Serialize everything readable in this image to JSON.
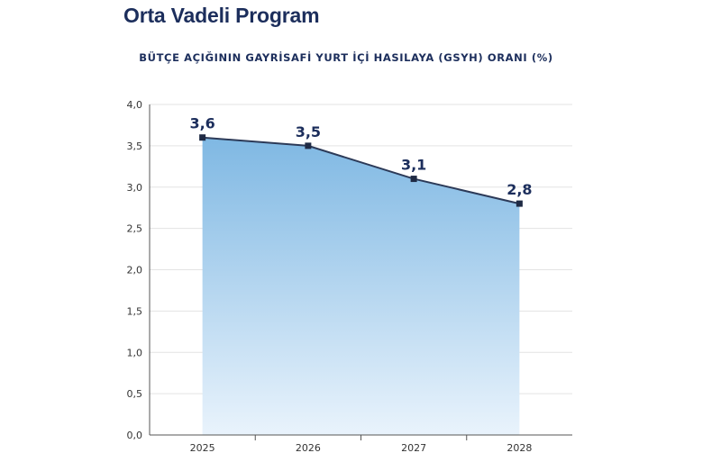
{
  "page": {
    "title": "Orta Vadeli Program"
  },
  "chart_data": {
    "type": "area",
    "title": "BÜTÇE AÇIĞININ GAYRİSAFİ YURT İÇİ HASILAYA (GSYH) ORANI (%)",
    "categories": [
      "2025",
      "2026",
      "2027",
      "2028"
    ],
    "values": [
      3.6,
      3.5,
      3.1,
      2.8
    ],
    "data_labels": [
      "3,6",
      "3,5",
      "3,1",
      "2,8"
    ],
    "ylim": [
      0,
      4
    ],
    "yticks": [
      0,
      0.5,
      1,
      1.5,
      2,
      2.5,
      3,
      3.5,
      4
    ],
    "ytick_labels": [
      "0,0",
      "0,5",
      "1,0",
      "1,5",
      "2,0",
      "2,5",
      "3,0",
      "3,5",
      "4,0"
    ],
    "xlabel": "",
    "ylabel": "",
    "grid": true,
    "legend": "none",
    "colors": {
      "line": "#2c3a58",
      "marker": "#1f2a44",
      "fill_top": "#7fb8e3",
      "fill_bottom": "#e9f3fc",
      "grid": "#e3e3e3",
      "axis": "#555555",
      "title": "#1c2e5c"
    }
  }
}
